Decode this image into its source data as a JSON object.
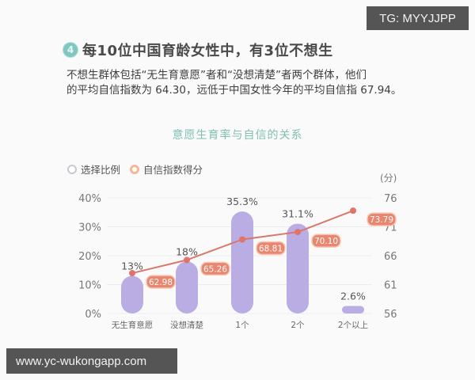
{
  "heading": {
    "badge_number": "4",
    "title": "每10位中国育龄女性中，有3位不想生"
  },
  "description": {
    "line1": "不想生群体包括“无生育意愿”者和“没想清楚”者两个群体，他们",
    "line2": "的平均自信指数为 64.30，远低于中国女性今年的平均自信指 67.94。"
  },
  "legend": {
    "items": [
      {
        "label": "选择比例",
        "icon": "circle-outline-gray"
      },
      {
        "label": "自信指数得分",
        "icon": "circle-outline-orange"
      }
    ]
  },
  "right_axis_unit": "(分)",
  "colors": {
    "bar": "#b9ade4",
    "line": "#d9776a",
    "point": "#e0736a",
    "label_bg": "#e9866f",
    "label_border": "#f6c9b6",
    "title": "#7fbfb3",
    "grid": "#ececf0"
  },
  "watermarks": {
    "tg": "TG: MYYJJPP",
    "url": "www.yc-wukongapp.com"
  },
  "chart_data": {
    "type": "bar",
    "title": "意愿生育率与自信的关系",
    "categories": [
      "无生育意愿",
      "没想清楚",
      "1个",
      "2个",
      "2个以上"
    ],
    "series": [
      {
        "name": "选择比例",
        "type": "bar",
        "axis": "left",
        "values": [
          13,
          18,
          35.3,
          31.1,
          2.6
        ],
        "labels": [
          "13%",
          "18%",
          "35.3%",
          "31.1%",
          "2.6%"
        ]
      },
      {
        "name": "自信指数得分",
        "type": "line",
        "axis": "right",
        "values": [
          62.98,
          65.26,
          68.81,
          70.1,
          73.79
        ],
        "labels": [
          "62.98",
          "65.26",
          "68.81",
          "70.10",
          "73.79"
        ]
      }
    ],
    "left_axis": {
      "ticks": [
        "0%",
        "10%",
        "20%",
        "30%",
        "40%"
      ],
      "ylim": [
        0,
        40
      ]
    },
    "right_axis": {
      "label": "(分)",
      "ticks": [
        "56",
        "61",
        "66",
        "71",
        "76"
      ],
      "ylim": [
        56,
        76
      ]
    },
    "grid": true,
    "legend_position": "top-left"
  }
}
